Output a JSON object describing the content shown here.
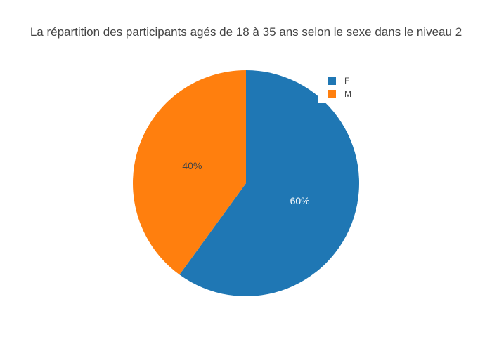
{
  "title": "La répartition des participants agés de 18 à 35 ans selon le sexe dans le niveau 2",
  "colors": {
    "background": "#ffffff",
    "title_text": "#444444",
    "legend_text": "#444444",
    "slice_blue": "#1f77b4",
    "slice_orange": "#ff7f0e"
  },
  "chart_data": {
    "type": "pie",
    "title": "La répartition des participants agés de 18 à 35 ans selon le sexe dans le niveau 2",
    "labels": [
      "F",
      "M"
    ],
    "values": [
      60,
      40
    ],
    "percent_labels": [
      "60%",
      "40%"
    ],
    "slice_colors": [
      "#1f77b4",
      "#ff7f0e"
    ],
    "slice_label_text_colors": [
      "#ffffff",
      "#444444"
    ],
    "start_angle_deg": 0,
    "direction": "clockwise",
    "legend": {
      "position": "top-right",
      "items": [
        {
          "label": "F",
          "color": "#1f77b4"
        },
        {
          "label": "M",
          "color": "#ff7f0e"
        }
      ]
    }
  }
}
